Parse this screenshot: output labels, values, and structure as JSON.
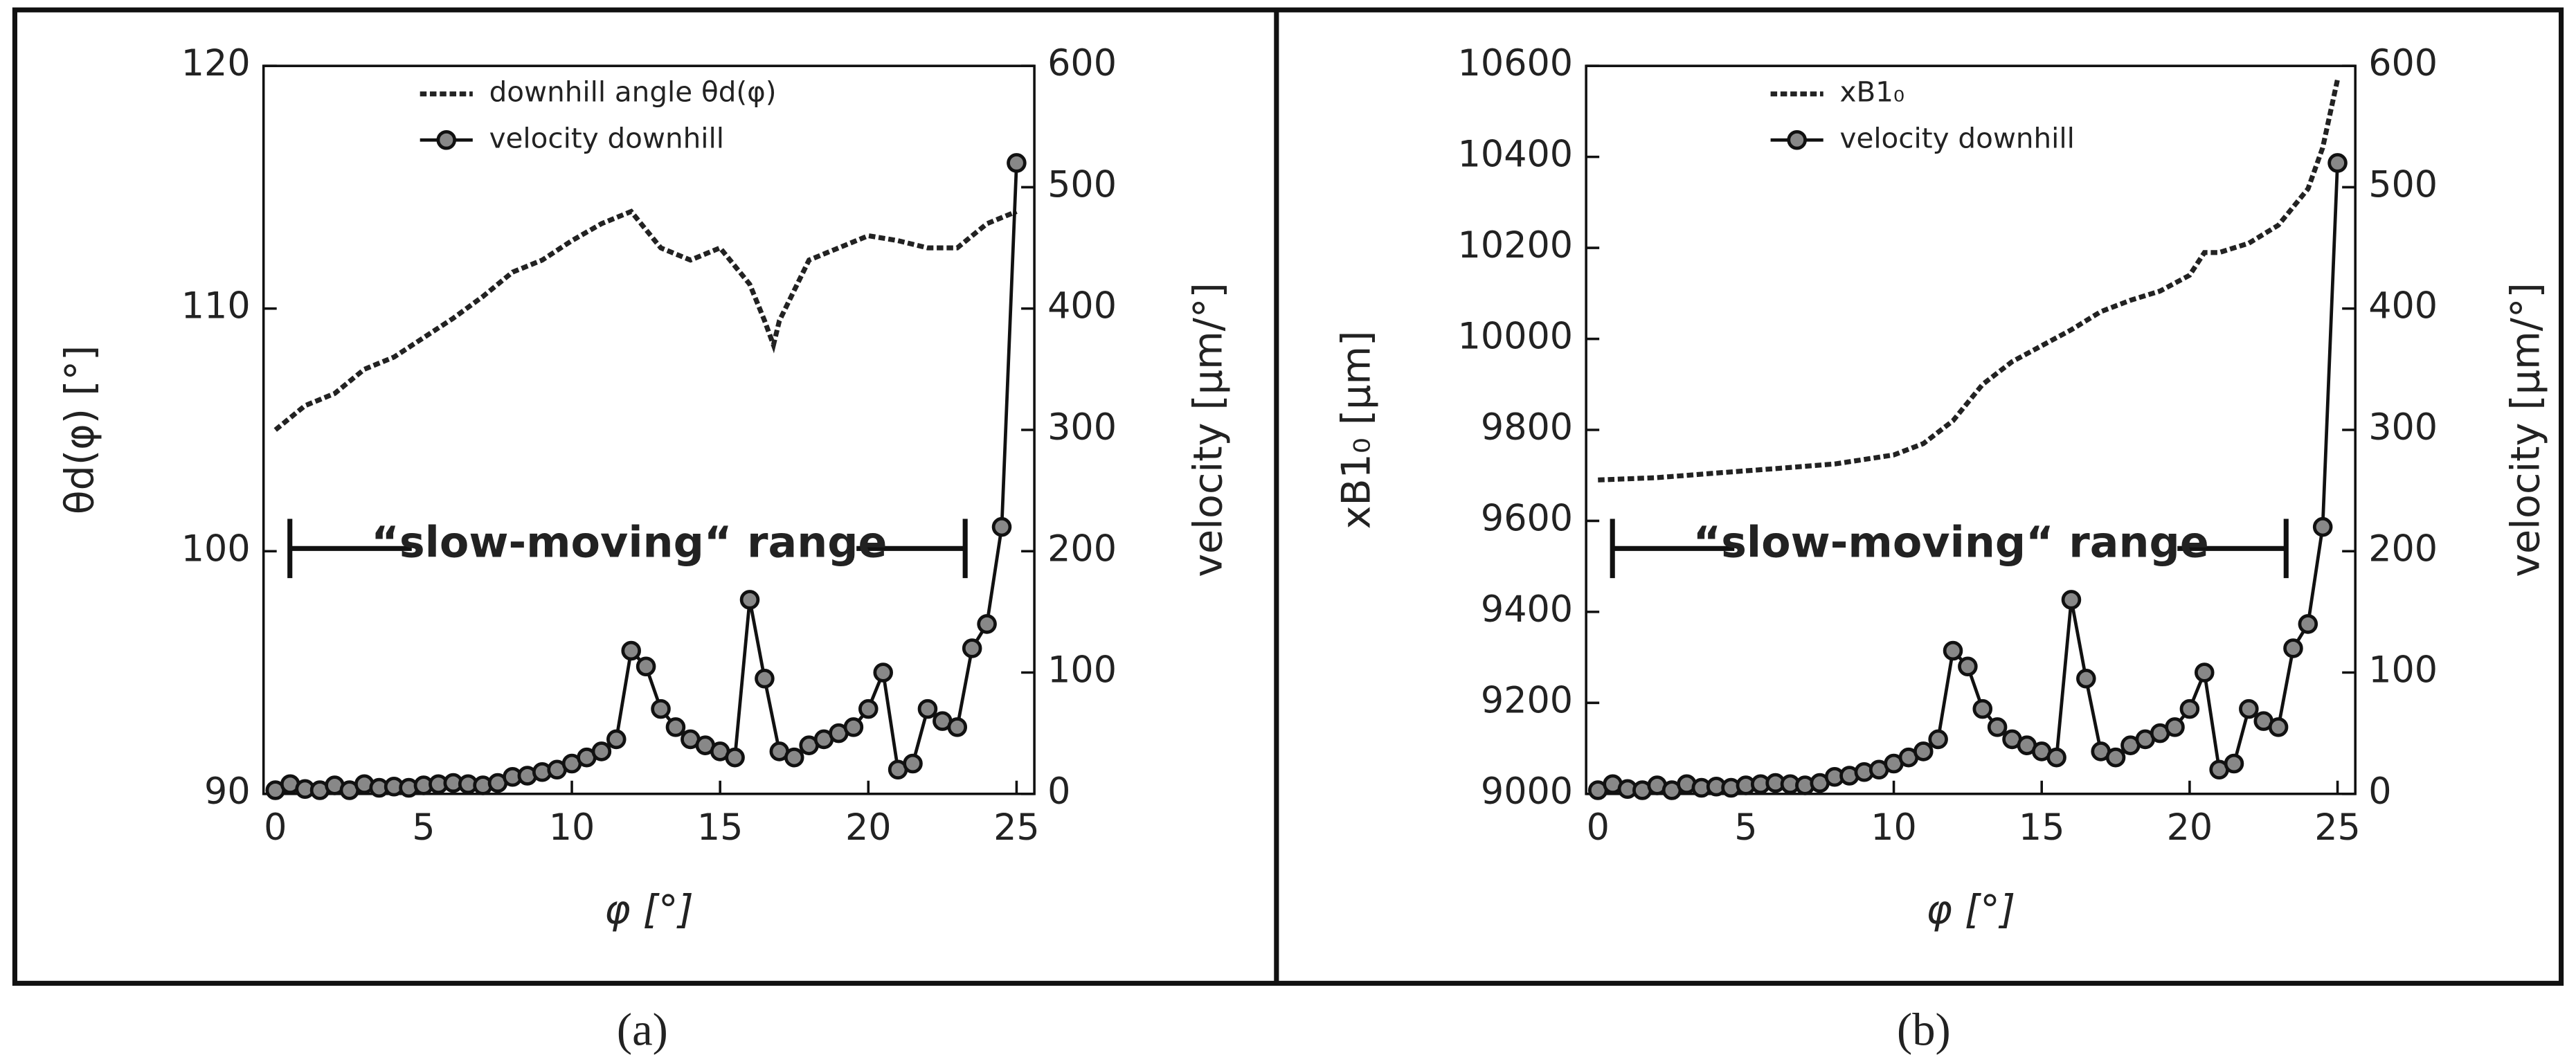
{
  "chart_data": [
    {
      "type": "line",
      "label": "(a)",
      "xlabel": "φ [°]",
      "ylabel": "θd(φ)  [°]",
      "y2label": "velocity [µm/°]",
      "annotations": [
        "“slow-moving“ range"
      ],
      "xlim": [
        -0.4,
        25.6
      ],
      "xticks": [
        0,
        5,
        10,
        15,
        20,
        25
      ],
      "ylim": [
        90,
        120
      ],
      "yticks": [
        90,
        100,
        110,
        120
      ],
      "y2lim": [
        0,
        600
      ],
      "y2ticks": [
        0,
        100,
        200,
        300,
        400,
        500,
        600
      ],
      "series": [
        {
          "name": "downhill angle θd(φ)",
          "color": "#222222",
          "line_style": "dashed",
          "x": [
            0,
            1,
            2,
            3,
            4,
            5,
            6,
            7,
            8,
            9,
            10,
            11,
            12,
            13,
            14,
            15,
            16,
            16.5,
            16.8,
            17,
            18,
            19,
            20,
            21,
            22,
            23,
            24,
            25
          ],
          "values": [
            105,
            106,
            106.5,
            107.5,
            108,
            108.8,
            109.6,
            110.5,
            111.5,
            112,
            112.8,
            113.5,
            114,
            112.5,
            112,
            112.5,
            111,
            109.5,
            108.5,
            109.5,
            112,
            112.5,
            113,
            112.8,
            112.5,
            112.5,
            113.5,
            114
          ]
        },
        {
          "name": "velocity downhill",
          "color": "#111111",
          "marker": "circle",
          "axis": "y2",
          "x": [
            0,
            0.5,
            1,
            1.5,
            2,
            2.5,
            3,
            3.5,
            4,
            4.5,
            5,
            5.5,
            6,
            6.5,
            7,
            7.5,
            8,
            8.5,
            9,
            9.5,
            10,
            10.5,
            11,
            11.5,
            12,
            12.5,
            13,
            13.5,
            14,
            14.5,
            15,
            15.5,
            16,
            16.5,
            17,
            17.5,
            18,
            18.5,
            19,
            19.5,
            20,
            20.5,
            21,
            21.5,
            22,
            22.5,
            23,
            23.5,
            24,
            24.5,
            25
          ],
          "values": [
            3,
            8,
            4,
            3,
            7,
            3,
            8,
            5,
            6,
            5,
            7,
            8,
            9,
            8,
            7,
            9,
            14,
            15,
            18,
            20,
            25,
            30,
            35,
            45,
            118,
            105,
            70,
            55,
            45,
            40,
            35,
            30,
            160,
            95,
            35,
            30,
            40,
            45,
            50,
            55,
            70,
            100,
            20,
            25,
            70,
            60,
            55,
            120,
            140,
            220,
            520
          ]
        }
      ]
    },
    {
      "type": "line",
      "label": "(b)",
      "xlabel": "φ [°]",
      "ylabel": "xB1₀ [µm]",
      "y2label": "velocity [µm/°]",
      "annotations": [
        "“slow-moving“ range"
      ],
      "xlim": [
        -0.4,
        25.6
      ],
      "xticks": [
        0,
        5,
        10,
        15,
        20,
        25
      ],
      "ylim": [
        9000,
        10600
      ],
      "yticks": [
        9000,
        9200,
        9400,
        9600,
        9800,
        10000,
        10200,
        10400,
        10600
      ],
      "y2lim": [
        0,
        600
      ],
      "y2ticks": [
        0,
        100,
        200,
        300,
        400,
        500,
        600
      ],
      "series": [
        {
          "name": "xB1₀",
          "color": "#222222",
          "line_style": "dashed",
          "x": [
            0,
            2,
            4,
            6,
            8,
            10,
            11,
            12,
            13,
            14,
            15,
            16,
            17,
            18,
            19,
            20,
            20.5,
            21,
            22,
            23,
            24,
            24.5,
            25
          ],
          "values": [
            9690,
            9695,
            9705,
            9715,
            9725,
            9745,
            9770,
            9820,
            9900,
            9950,
            9985,
            10020,
            10060,
            10085,
            10105,
            10140,
            10190,
            10190,
            10210,
            10250,
            10330,
            10420,
            10570
          ]
        },
        {
          "name": "velocity downhill",
          "color": "#111111",
          "marker": "circle",
          "axis": "y2",
          "x": [
            0,
            0.5,
            1,
            1.5,
            2,
            2.5,
            3,
            3.5,
            4,
            4.5,
            5,
            5.5,
            6,
            6.5,
            7,
            7.5,
            8,
            8.5,
            9,
            9.5,
            10,
            10.5,
            11,
            11.5,
            12,
            12.5,
            13,
            13.5,
            14,
            14.5,
            15,
            15.5,
            16,
            16.5,
            17,
            17.5,
            18,
            18.5,
            19,
            19.5,
            20,
            20.5,
            21,
            21.5,
            22,
            22.5,
            23,
            23.5,
            24,
            24.5,
            25
          ],
          "values": [
            3,
            8,
            4,
            3,
            7,
            3,
            8,
            5,
            6,
            5,
            7,
            8,
            9,
            8,
            7,
            9,
            14,
            15,
            18,
            20,
            25,
            30,
            35,
            45,
            118,
            105,
            70,
            55,
            45,
            40,
            35,
            30,
            160,
            95,
            35,
            30,
            40,
            45,
            50,
            55,
            70,
            100,
            20,
            25,
            70,
            60,
            55,
            120,
            140,
            220,
            520
          ]
        }
      ]
    }
  ]
}
